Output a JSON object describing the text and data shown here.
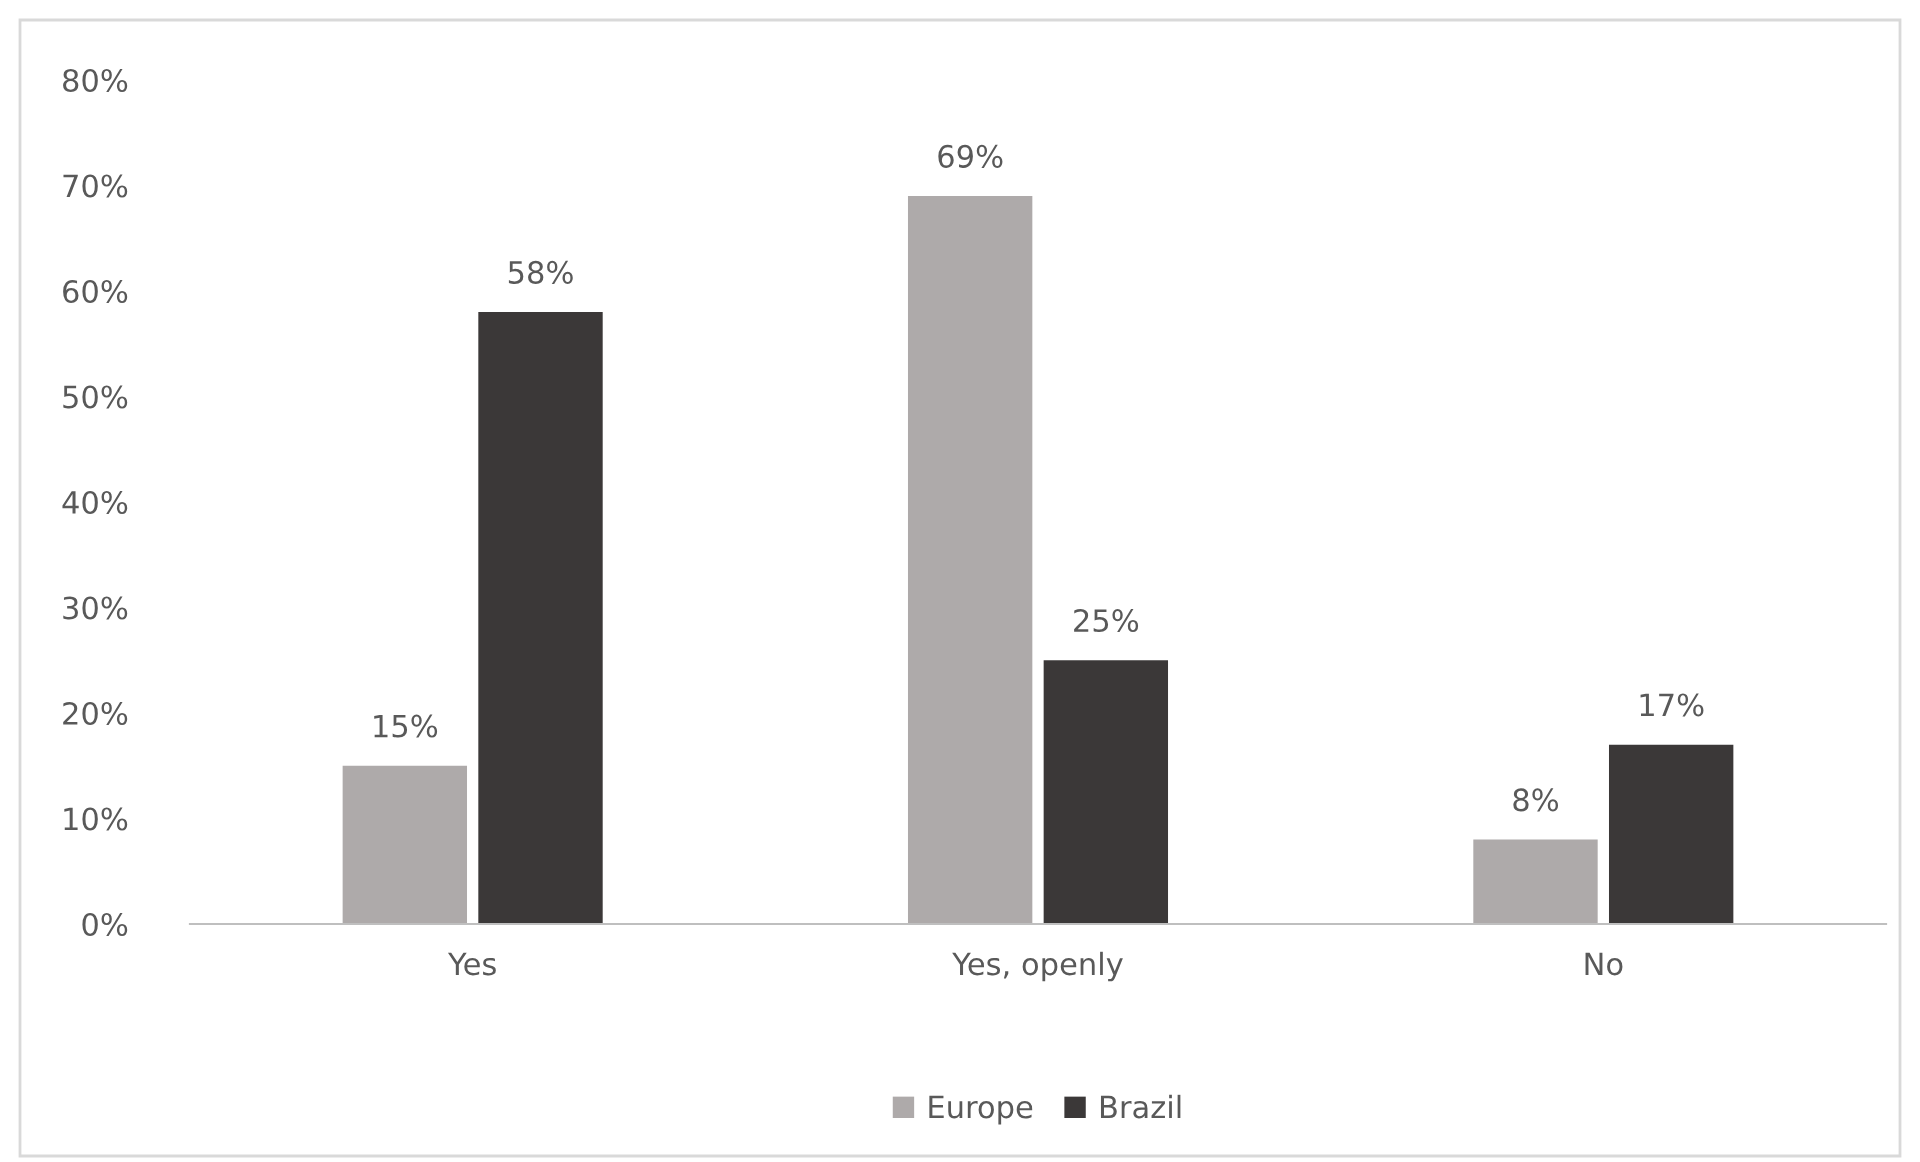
{
  "chart_data": {
    "type": "bar",
    "categories": [
      "Yes",
      "Yes, openly",
      "No"
    ],
    "series": [
      {
        "name": "Europe",
        "color": "#aeaaaa",
        "values": [
          15,
          69,
          8
        ],
        "value_labels": [
          "15%",
          "69%",
          "8%"
        ]
      },
      {
        "name": "Brazil",
        "color": "#3b3838",
        "values": [
          58,
          25,
          17
        ],
        "value_labels": [
          "58%",
          "25%",
          "17%"
        ]
      }
    ],
    "ylim": [
      0,
      80
    ],
    "yticks": [
      {
        "value": 0,
        "label": "0%"
      },
      {
        "value": 10,
        "label": "10%"
      },
      {
        "value": 20,
        "label": "20%"
      },
      {
        "value": 30,
        "label": "30%"
      },
      {
        "value": 40,
        "label": "40%"
      },
      {
        "value": 50,
        "label": "50%"
      },
      {
        "value": 60,
        "label": "60%"
      },
      {
        "value": 70,
        "label": "70%"
      },
      {
        "value": 80,
        "label": "80%"
      }
    ],
    "grid": false,
    "legend": "bottom"
  }
}
